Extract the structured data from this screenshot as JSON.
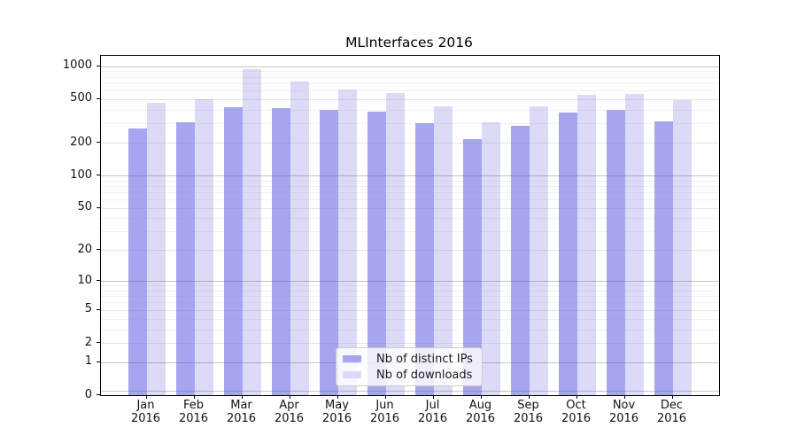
{
  "chart_data": {
    "type": "bar",
    "title": "MLInterfaces 2016",
    "x_labels": [
      {
        "month": "Jan",
        "year": "2016"
      },
      {
        "month": "Feb",
        "year": "2016"
      },
      {
        "month": "Mar",
        "year": "2016"
      },
      {
        "month": "Apr",
        "year": "2016"
      },
      {
        "month": "May",
        "year": "2016"
      },
      {
        "month": "Jun",
        "year": "2016"
      },
      {
        "month": "Jul",
        "year": "2016"
      },
      {
        "month": "Aug",
        "year": "2016"
      },
      {
        "month": "Sep",
        "year": "2016"
      },
      {
        "month": "Oct",
        "year": "2016"
      },
      {
        "month": "Nov",
        "year": "2016"
      },
      {
        "month": "Dec",
        "year": "2016"
      }
    ],
    "series": [
      {
        "name": "Nb of distinct IPs",
        "color": "#a6a6f0",
        "values": [
          272,
          308,
          426,
          413,
          402,
          385,
          299,
          217,
          284,
          380,
          397,
          314
        ]
      },
      {
        "name": "Nb of downloads",
        "color": "#dbdbf7",
        "values": [
          462,
          504,
          939,
          723,
          615,
          571,
          429,
          306,
          429,
          550,
          557,
          486
        ]
      }
    ],
    "y_axis": {
      "scale": "log10(1+y)",
      "ticks": [
        0,
        1,
        2,
        5,
        10,
        20,
        50,
        100,
        200,
        500,
        1000
      ],
      "top_value": 1243
    },
    "grid": {
      "on": true,
      "which": "major+minor"
    },
    "legend": {
      "position": "lower center"
    }
  }
}
